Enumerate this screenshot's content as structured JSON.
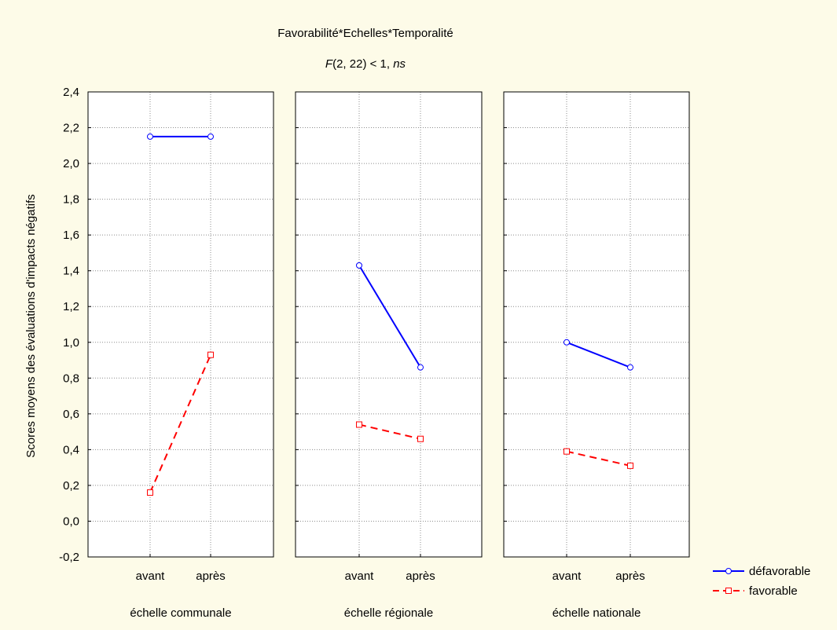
{
  "chart_data": {
    "type": "line",
    "title": "Favorabilité*Echelles*Temporalité",
    "subtitle": {
      "f_letter": "F",
      "f_rest": "(2, 22) < 1, ",
      "ns": "ns"
    },
    "ylabel": "Scores moyens des évaluations d'impacts négatifs",
    "ylim": [
      -0.2,
      2.4
    ],
    "yticks": [
      2.4,
      2.2,
      2.0,
      1.8,
      1.6,
      1.4,
      1.2,
      1.0,
      0.8,
      0.6,
      0.4,
      0.2,
      0.0,
      -0.2
    ],
    "ytick_labels": [
      "2,4",
      "2,2",
      "2,0",
      "1,8",
      "1,6",
      "1,4",
      "1,2",
      "1,0",
      "0,8",
      "0,6",
      "0,4",
      "0,2",
      "0,0",
      "-0,2"
    ],
    "categories": [
      "avant",
      "après"
    ],
    "grid": true,
    "legend_position": "bottom-right",
    "panels": [
      {
        "label": "échelle communale",
        "series": [
          {
            "name": "défavorable",
            "values": [
              2.15,
              2.15
            ]
          },
          {
            "name": "favorable",
            "values": [
              0.16,
              0.93
            ]
          }
        ]
      },
      {
        "label": "échelle régionale",
        "series": [
          {
            "name": "défavorable",
            "values": [
              1.43,
              0.86
            ]
          },
          {
            "name": "favorable",
            "values": [
              0.54,
              0.46
            ]
          }
        ]
      },
      {
        "label": "échelle nationale",
        "series": [
          {
            "name": "défavorable",
            "values": [
              1.0,
              0.86
            ]
          },
          {
            "name": "favorable",
            "values": [
              0.39,
              0.31
            ]
          }
        ]
      }
    ],
    "series_style": [
      {
        "name": "défavorable",
        "color": "#0000ff",
        "dash": "solid",
        "marker": "circle"
      },
      {
        "name": "favorable",
        "color": "#ff0000",
        "dash": "dashed",
        "marker": "square"
      }
    ]
  }
}
